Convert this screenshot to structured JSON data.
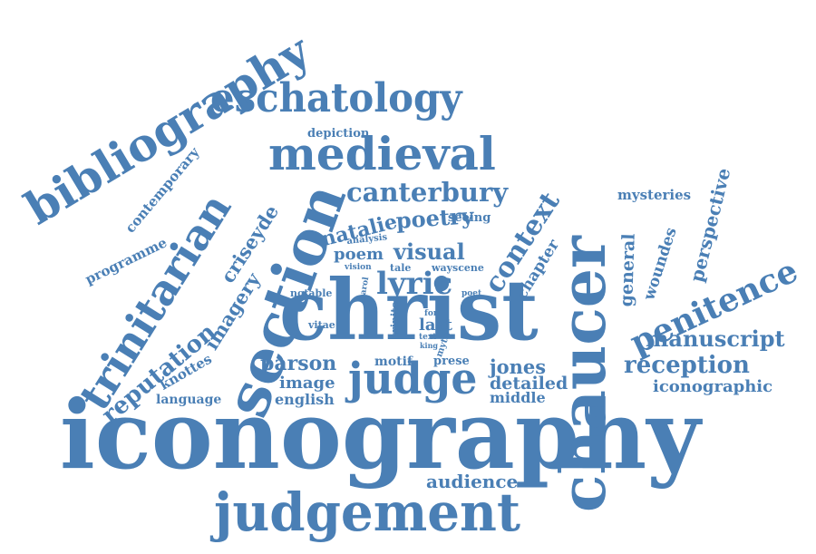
{
  "cloud": {
    "color": "#4a7fb5",
    "words": {
      "iconography": "iconography",
      "christ": "christ",
      "chaucer": "chaucer",
      "judgement": "judgement",
      "section": "section",
      "medieval": "medieval",
      "eschatology": "eschatology",
      "bibliography": "bibliography",
      "trinitarian": "trinitarian",
      "judge": "judge",
      "penitence": "penitence",
      "context": "context",
      "lyric": "lyric",
      "canterbury": "canterbury",
      "reputation": "reputation",
      "manuscript": "manuscript",
      "reception": "reception",
      "perspective": "perspective",
      "poetry": "poetry",
      "criseyde": "criseyde",
      "imagery": "imagery",
      "natalie": "natalie",
      "poem": "poem",
      "visual": "visual",
      "parson": "parson",
      "jones": "jones",
      "detailed": "detailed",
      "middle": "middle",
      "image": "image",
      "english": "english",
      "audience": "audience",
      "iconographic": "iconographic",
      "general": "general",
      "woundes": "woundes",
      "chapter": "chapter",
      "contemporary": "contemporary",
      "programme": "programme",
      "mysteries": "mysteries",
      "depiction": "depiction",
      "seeing": "seeing",
      "knottes": "knottes",
      "language": "language",
      "last": "last",
      "motif": "motif",
      "prese": "prese",
      "notable": "notable",
      "vitae": "vitae",
      "analysis": "analysis",
      "vision": "vision",
      "tale": "tale",
      "way": "way",
      "scene": "scene",
      "carol": "carol",
      "poet": "poet",
      "trinite": "trinite",
      "fon": "fon",
      "text": "text",
      "king": "king",
      "myth": "myth"
    }
  }
}
